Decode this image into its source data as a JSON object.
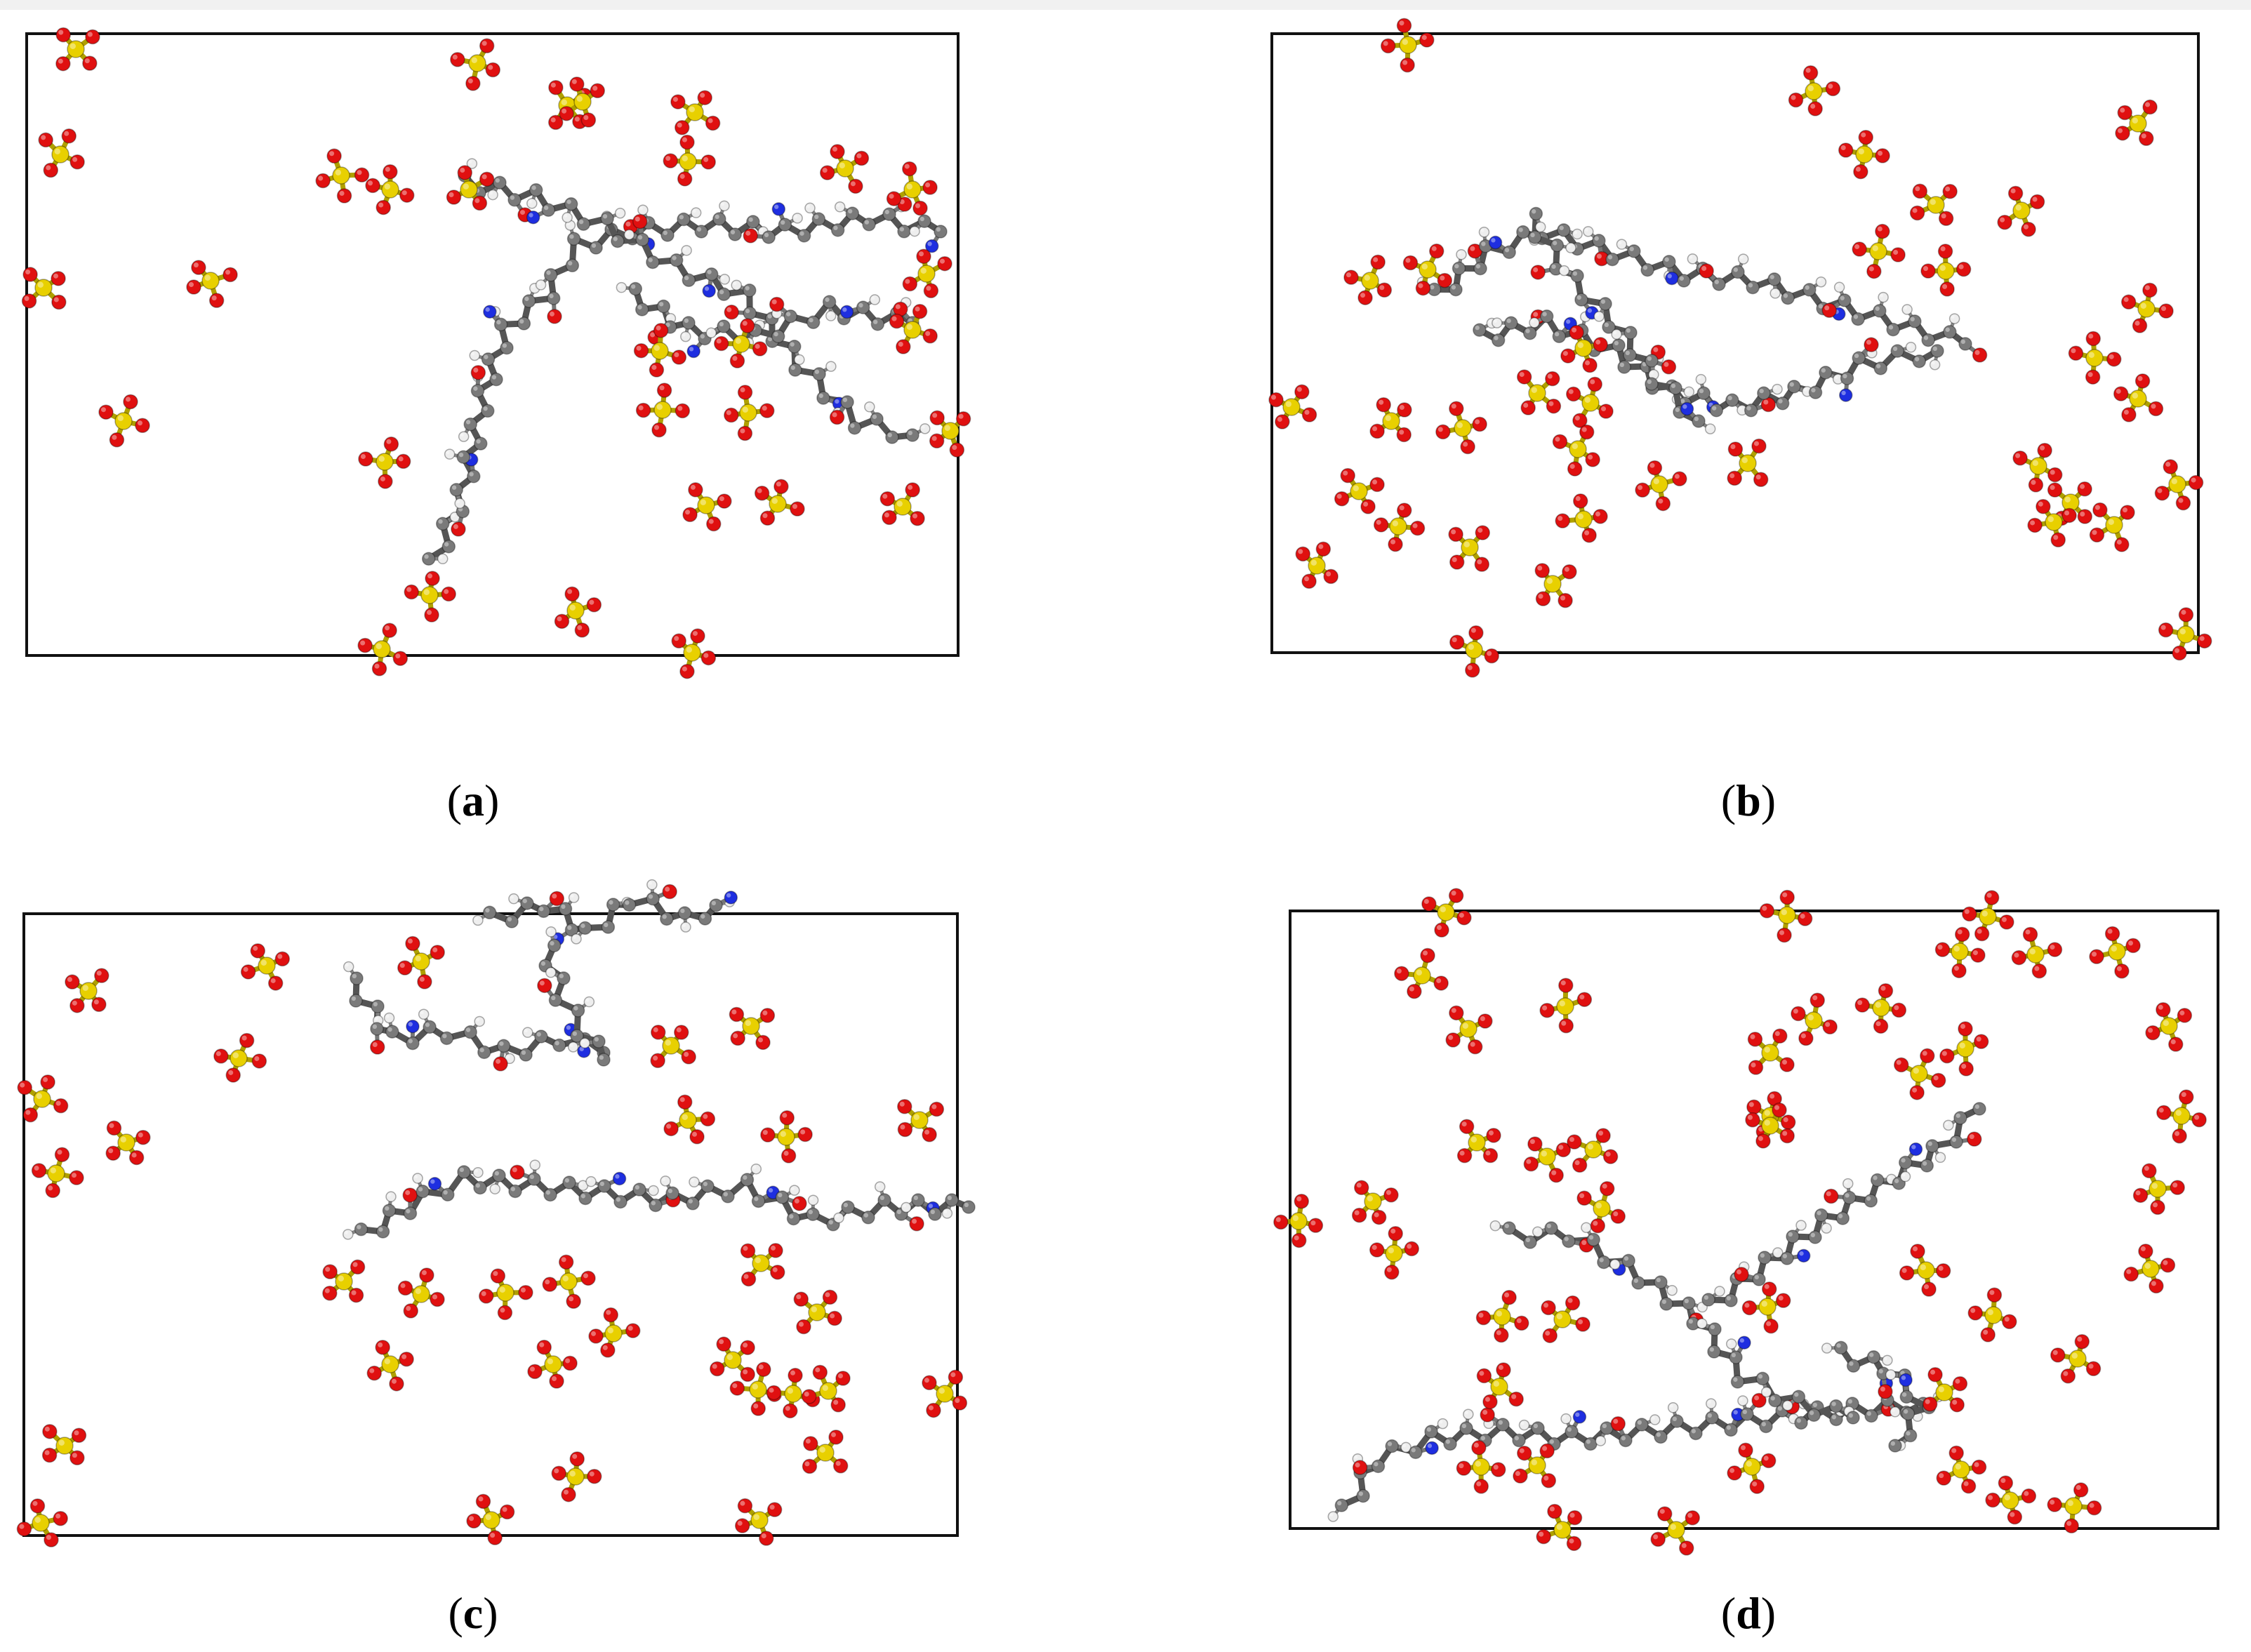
{
  "panels": [
    {
      "id": "a",
      "caption_letter": "a"
    },
    {
      "id": "b",
      "caption_letter": "b"
    },
    {
      "id": "c",
      "caption_letter": "c"
    },
    {
      "id": "d",
      "caption_letter": "d"
    }
  ],
  "colors": {
    "sulfur": "#e8d000",
    "oxygen": "#e01010",
    "carbon": "#7a7a7a",
    "nitrogen": "#1e2ee0",
    "hydrogen": "#eeeeee",
    "box_border": "#111111"
  },
  "legend_note": "",
  "icons": [
    "sulfate-ion",
    "polymer-chain"
  ]
}
